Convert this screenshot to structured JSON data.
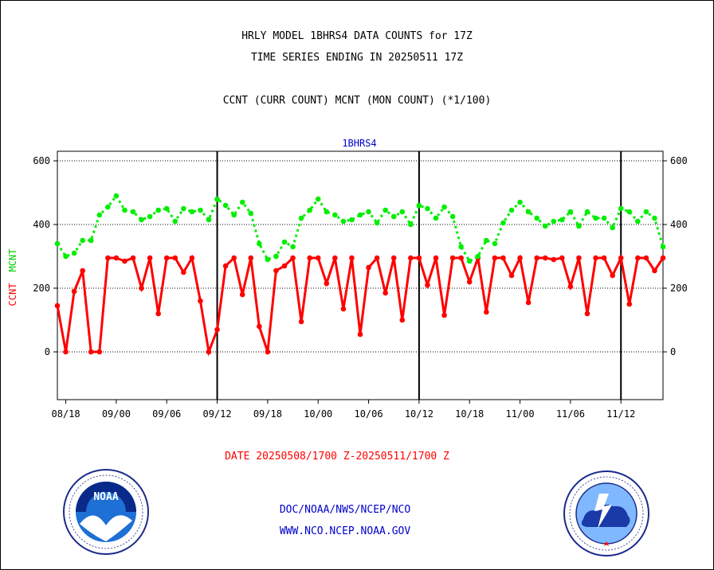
{
  "header": {
    "line1": "HRLY MODEL 1BHRS4 DATA COUNTS for 17Z",
    "line2": "TIME SERIES ENDING IN 20250511 17Z",
    "line3": "CCNT (CURR COUNT) MCNT (MON COUNT) (*1/100)"
  },
  "footer": {
    "date_range": "DATE 20250508/1700 Z-20250511/1700 Z",
    "org_line": "DOC/NOAA/NWS/NCEP/NCO",
    "url_line": "WWW.NCO.NCEP.NOAA.GOV"
  },
  "colors": {
    "ccnt": "#ff0000",
    "mcnt": "#00ee00",
    "axis": "#000000",
    "credit": "#0000cc"
  },
  "logos": {
    "left": "noaa-logo",
    "right": "nws-logo"
  },
  "chart_data": {
    "type": "line",
    "title": "1BHRS4",
    "ylabel_ccnt": "CCNT",
    "ylabel_mcnt": "MCNT",
    "ylim": [
      -150,
      630
    ],
    "yticks": [
      0,
      200,
      400,
      600
    ],
    "grid": true,
    "xticks": [
      {
        "idx": 1,
        "label": "08/18"
      },
      {
        "idx": 7,
        "label": "09/00"
      },
      {
        "idx": 13,
        "label": "09/06"
      },
      {
        "idx": 19,
        "label": "09/12"
      },
      {
        "idx": 25,
        "label": "09/18"
      },
      {
        "idx": 31,
        "label": "10/00"
      },
      {
        "idx": 37,
        "label": "10/06"
      },
      {
        "idx": 43,
        "label": "10/12"
      },
      {
        "idx": 49,
        "label": "10/18"
      },
      {
        "idx": 55,
        "label": "11/00"
      },
      {
        "idx": 61,
        "label": "11/06"
      },
      {
        "idx": 67,
        "label": "11/12"
      }
    ],
    "day_boundaries": [
      19,
      43,
      67
    ],
    "series": [
      {
        "name": "CCNT",
        "values": [
          145,
          0,
          190,
          255,
          0,
          0,
          295,
          295,
          285,
          295,
          200,
          295,
          120,
          295,
          295,
          250,
          295,
          160,
          0,
          70,
          270,
          295,
          180,
          295,
          80,
          0,
          255,
          270,
          295,
          95,
          295,
          295,
          215,
          295,
          135,
          295,
          55,
          265,
          295,
          185,
          295,
          100,
          295,
          295,
          210,
          295,
          115,
          295,
          295,
          220,
          295,
          125,
          295,
          295,
          240,
          295,
          155,
          295,
          295,
          290,
          295,
          205,
          295,
          120,
          295,
          295,
          240,
          295,
          150,
          295,
          295,
          255,
          295
        ]
      },
      {
        "name": "MCNT",
        "values": [
          340,
          300,
          310,
          350,
          350,
          430,
          455,
          490,
          445,
          440,
          415,
          425,
          445,
          450,
          410,
          450,
          440,
          445,
          415,
          480,
          460,
          430,
          470,
          435,
          340,
          290,
          300,
          345,
          330,
          420,
          445,
          480,
          440,
          430,
          410,
          415,
          430,
          440,
          405,
          445,
          425,
          440,
          400,
          460,
          450,
          420,
          455,
          425,
          330,
          285,
          300,
          350,
          340,
          405,
          445,
          470,
          440,
          420,
          395,
          410,
          415,
          440,
          395,
          440,
          420,
          420,
          390,
          450,
          440,
          410,
          440,
          420,
          330
        ]
      }
    ]
  }
}
